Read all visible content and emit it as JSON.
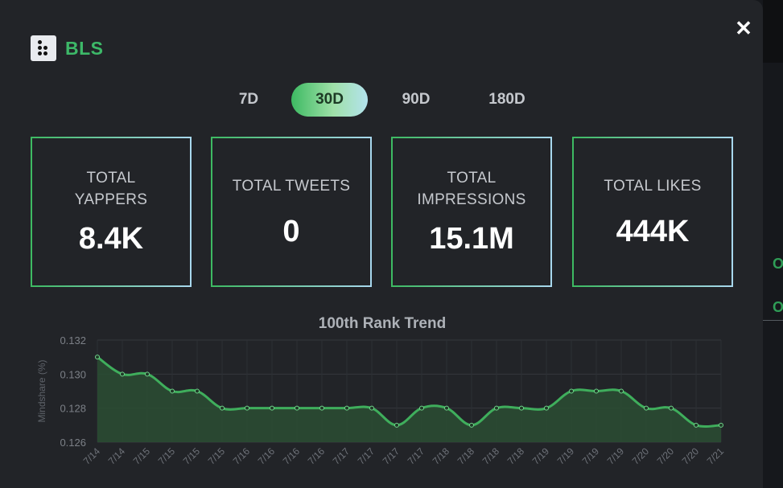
{
  "project": {
    "name": "BLS",
    "logo_icon": "dots-logo-icon"
  },
  "close_icon": "close-icon",
  "range_tabs": [
    {
      "label": "7D",
      "active": false
    },
    {
      "label": "30D",
      "active": true
    },
    {
      "label": "90D",
      "active": false
    },
    {
      "label": "180D",
      "active": false
    }
  ],
  "stats": [
    {
      "label": "TOTAL YAPPERS",
      "value": "8.4K"
    },
    {
      "label": "TOTAL TWEETS",
      "value": "0"
    },
    {
      "label": "TOTAL IMPRESSIONS",
      "value": "15.1M"
    },
    {
      "label": "TOTAL LIKES",
      "value": "444K"
    }
  ],
  "colors": {
    "accent": "#3db868",
    "background": "#222428",
    "line": "#3fae5c"
  },
  "chart_data": {
    "type": "area",
    "title": "100th Rank Trend",
    "ylabel": "Mindshare (%)",
    "xlabel": "",
    "ylim": [
      0.126,
      0.132
    ],
    "yticks": [
      "0.132",
      "0.130",
      "0.128",
      "0.126"
    ],
    "grid": true,
    "x": [
      "7/14",
      "7/14",
      "7/15",
      "7/15",
      "7/15",
      "7/15",
      "7/16",
      "7/16",
      "7/16",
      "7/16",
      "7/17",
      "7/17",
      "7/17",
      "7/17",
      "7/18",
      "7/18",
      "7/18",
      "7/18",
      "7/19",
      "7/19",
      "7/19",
      "7/19",
      "7/20",
      "7/20",
      "7/20",
      "7/21"
    ],
    "series": [
      {
        "values": [
          0.131,
          0.13,
          0.13,
          0.129,
          0.129,
          0.128,
          0.128,
          0.128,
          0.128,
          0.128,
          0.128,
          0.128,
          0.127,
          0.128,
          0.128,
          0.127,
          0.128,
          0.128,
          0.128,
          0.129,
          0.129,
          0.129,
          0.128,
          0.128,
          0.127,
          0.127
        ]
      }
    ]
  },
  "background": {
    "edge_text_1": "O",
    "edge_text_2": "O"
  }
}
